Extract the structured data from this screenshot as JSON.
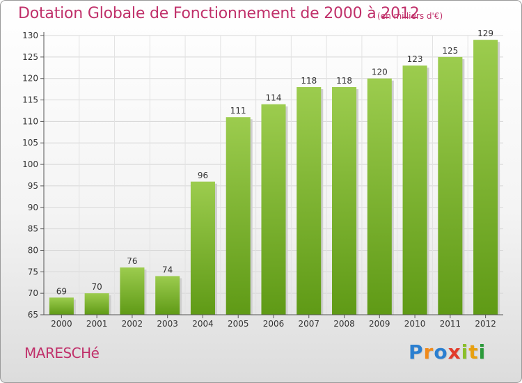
{
  "header": {
    "title": "Dotation Globale de Fonctionnement de 2000 à 2012",
    "unit": "(en milliers d'€)"
  },
  "footer": {
    "commune": "MARESCHé",
    "logo_letters": [
      {
        "ch": "P",
        "color": "#2b7fd0"
      },
      {
        "ch": "r",
        "color": "#f08a1a"
      },
      {
        "ch": "o",
        "color": "#2b7fd0"
      },
      {
        "ch": "x",
        "color": "#e23a2a"
      },
      {
        "ch": "i",
        "color": "#8abf2a"
      },
      {
        "ch": "t",
        "color": "#e8a010"
      },
      {
        "ch": "i",
        "color": "#2b9a3a"
      }
    ]
  },
  "chart_data": {
    "type": "bar",
    "title": "Dotation Globale de Fonctionnement de 2000 à 2012",
    "subtitle": "(en milliers d'€)",
    "categories": [
      "2000",
      "2001",
      "2002",
      "2003",
      "2004",
      "2005",
      "2006",
      "2007",
      "2008",
      "2009",
      "2010",
      "2011",
      "2012"
    ],
    "values": [
      69,
      70,
      76,
      74,
      96,
      111,
      114,
      118,
      118,
      120,
      123,
      125,
      129
    ],
    "ylim": [
      65,
      130
    ],
    "yticks": [
      65,
      70,
      75,
      80,
      85,
      90,
      95,
      100,
      105,
      110,
      115,
      120,
      125,
      130
    ],
    "grid": true,
    "bar_color_top": "#9ccc4e",
    "bar_color_bottom": "#5f9a16"
  }
}
